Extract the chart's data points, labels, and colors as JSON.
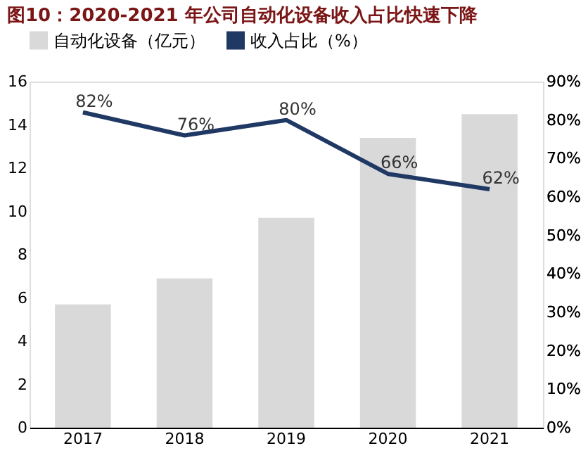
{
  "chart_data": {
    "type": "bar",
    "title": "图10：2020-2021 年公司自动化设备收入占比快速下降",
    "categories": [
      "2017",
      "2018",
      "2019",
      "2020",
      "2021"
    ],
    "series": [
      {
        "name": "自动化设备（亿元）",
        "color": "#d9d9d9",
        "values": [
          5.7,
          6.9,
          9.7,
          13.4,
          14.5
        ]
      },
      {
        "name": "收入占比（%）",
        "type": "line",
        "axis": "y2",
        "color": "#1f3864",
        "values": [
          82,
          76,
          80,
          66,
          62
        ],
        "value_labels": [
          "82%",
          "76%",
          "80%",
          "66%",
          "62%"
        ]
      }
    ],
    "ylim": [
      0,
      16
    ],
    "yticks": [
      0,
      2,
      4,
      6,
      8,
      10,
      12,
      14,
      16
    ],
    "y2lim": [
      0,
      90
    ],
    "y2ticks": [
      {
        "value": 0,
        "label": "0%"
      },
      {
        "value": 10,
        "label": "10%"
      },
      {
        "value": 20,
        "label": "20%"
      },
      {
        "value": 30,
        "label": "30%"
      },
      {
        "value": 40,
        "label": "40%"
      },
      {
        "value": 50,
        "label": "50%"
      },
      {
        "value": 60,
        "label": "60%"
      },
      {
        "value": 70,
        "label": "70%"
      },
      {
        "value": 80,
        "label": "80%"
      },
      {
        "value": 90,
        "label": "90%"
      }
    ],
    "legend": "top",
    "grid": false
  }
}
